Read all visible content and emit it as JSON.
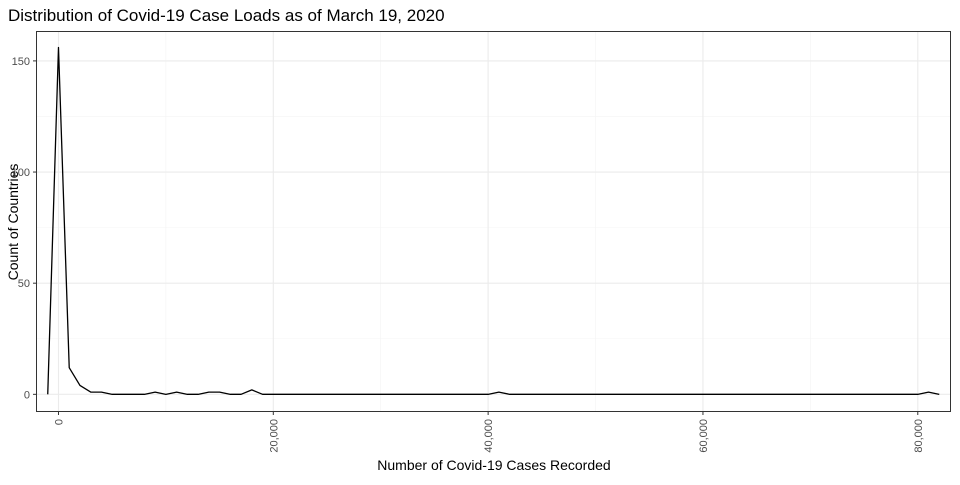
{
  "chart_data": {
    "type": "line",
    "title": "Distribution of Covid-19 Case Loads as of March 19, 2020",
    "xlabel": "Number of Covid-19 Cases Recorded",
    "ylabel": "Count of Countries",
    "xlim": [
      -2000,
      83000
    ],
    "ylim": [
      -7.5,
      163
    ],
    "x_ticks": [
      0,
      20000,
      40000,
      60000,
      80000
    ],
    "x_tick_labels": [
      "0",
      "20,000",
      "40,000",
      "60,000",
      "80,000"
    ],
    "y_ticks": [
      0,
      50,
      100,
      150
    ],
    "y_tick_labels": [
      "0",
      "50",
      "100",
      "150"
    ],
    "grid": true,
    "legend": "none",
    "series": [
      {
        "color": "#000000",
        "x": [
          -1000,
          0,
          1000,
          2000,
          3000,
          4000,
          5000,
          6000,
          7000,
          8000,
          9000,
          10000,
          11000,
          12000,
          13000,
          14000,
          15000,
          16000,
          17000,
          18000,
          19000,
          20000,
          21000,
          22000,
          23000,
          24000,
          25000,
          26000,
          27000,
          28000,
          29000,
          30000,
          31000,
          32000,
          33000,
          34000,
          35000,
          36000,
          37000,
          38000,
          39000,
          40000,
          41000,
          42000,
          43000,
          44000,
          45000,
          46000,
          47000,
          48000,
          49000,
          50000,
          51000,
          52000,
          53000,
          54000,
          55000,
          56000,
          57000,
          58000,
          59000,
          60000,
          61000,
          62000,
          63000,
          64000,
          65000,
          66000,
          67000,
          68000,
          69000,
          70000,
          71000,
          72000,
          73000,
          74000,
          75000,
          76000,
          77000,
          78000,
          79000,
          80000,
          81000,
          82000
        ],
        "values": [
          0,
          156,
          12,
          4,
          1,
          1,
          0,
          0,
          0,
          0,
          1,
          0,
          1,
          0,
          0,
          1,
          1,
          0,
          0,
          2,
          0,
          0,
          0,
          0,
          0,
          0,
          0,
          0,
          0,
          0,
          0,
          0,
          0,
          0,
          0,
          0,
          0,
          0,
          0,
          0,
          0,
          0,
          1,
          0,
          0,
          0,
          0,
          0,
          0,
          0,
          0,
          0,
          0,
          0,
          0,
          0,
          0,
          0,
          0,
          0,
          0,
          0,
          0,
          0,
          0,
          0,
          0,
          0,
          0,
          0,
          0,
          0,
          0,
          0,
          0,
          0,
          0,
          0,
          0,
          0,
          0,
          0,
          1,
          0
        ]
      }
    ],
    "colors": {
      "panel_border": "#333333",
      "grid_major": "#ebebeb",
      "grid_minor": "#f4f4f4",
      "line": "#000000",
      "tick_text": "#4d4d4d"
    }
  }
}
